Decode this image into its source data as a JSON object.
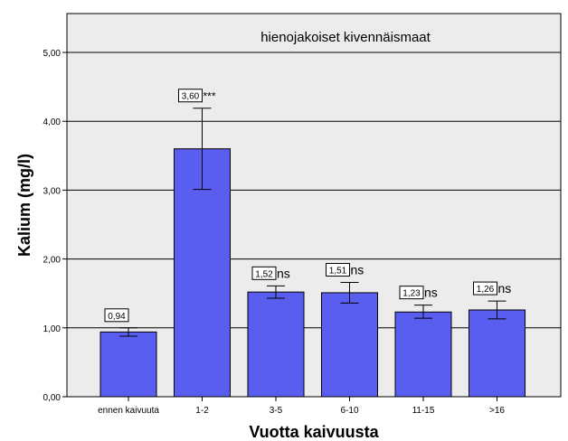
{
  "chart_data": {
    "type": "bar",
    "title": "hienojakoiset kivennäismaat",
    "xlabel": "Vuotta kaivuusta",
    "ylabel": "Kalium (mg/l)",
    "ylim": [
      0,
      5.5
    ],
    "yticks": [
      "0,00",
      "1,00",
      "2,00",
      "3,00",
      "4,00",
      "5,00"
    ],
    "categories": [
      "ennen kaivuuta",
      "1-2",
      "3-5",
      "6-10",
      "11-15",
      ">16"
    ],
    "values": [
      0.94,
      3.6,
      1.52,
      1.51,
      1.23,
      1.26
    ],
    "error_low": [
      0.88,
      3.01,
      1.43,
      1.36,
      1.14,
      1.13
    ],
    "error_high": [
      1.0,
      4.19,
      1.61,
      1.66,
      1.33,
      1.39
    ],
    "value_labels": [
      "0,94",
      "3,60",
      "1,52",
      "1,51",
      "1,23",
      "1,26"
    ],
    "significance": [
      "",
      "***",
      "ns",
      "ns",
      "ns",
      "ns"
    ],
    "grid": true,
    "colors": {
      "bar": "#5a5ef0",
      "plot_bg": "#ececec",
      "bar_stroke": "#000000"
    }
  }
}
